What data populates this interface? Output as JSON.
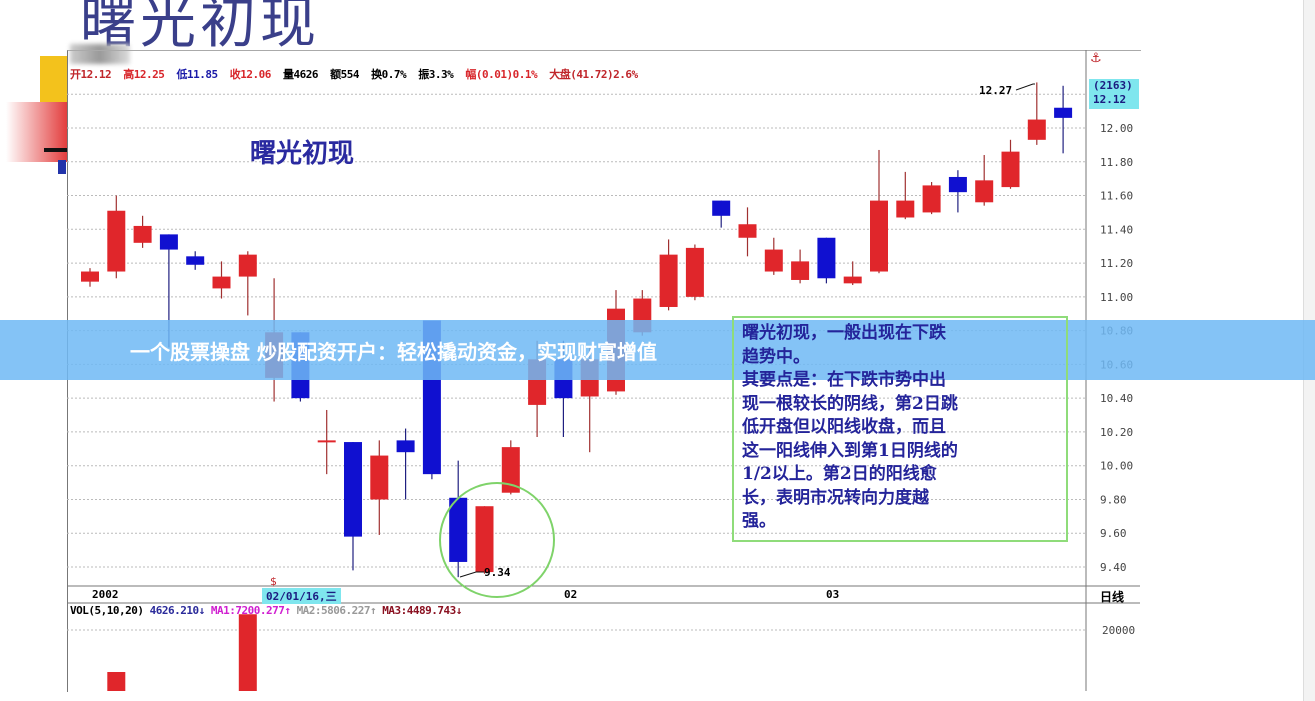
{
  "page": {
    "big_title": "曙光初现",
    "banner": "一个股票操盘 炒股配资开户：轻松撬动资金，实现财富增值"
  },
  "info_bar": {
    "open": "开12.12",
    "high": "高12.25",
    "low": "低11.85",
    "close": "收12.06",
    "volume": "量4626",
    "amount": "额554",
    "turnover": "换0.7%",
    "amplitude": "振3.3%",
    "change": "幅(0.01)0.1%",
    "index": "大盘(41.72)2.6%",
    "colors": {
      "open": "#c0262b",
      "high": "#d8262b",
      "low": "#1a1aa8",
      "close": "#d8262b",
      "neutral": "#111111",
      "change": "#d8262b",
      "index": "#c0262b"
    }
  },
  "chart_data": {
    "type": "candlestick",
    "title": "曙光初现",
    "ylim": [
      9.3,
      12.3
    ],
    "yticks": [
      "12.00",
      "11.80",
      "11.60",
      "11.40",
      "11.20",
      "11.00",
      "10.80",
      "10.60",
      "10.40",
      "10.20",
      "10.00",
      "9.80",
      "9.60",
      "9.40"
    ],
    "ytick_values": [
      12.0,
      11.8,
      11.6,
      11.4,
      11.2,
      11.0,
      10.8,
      10.6,
      10.4,
      10.2,
      10.0,
      9.8,
      9.6,
      9.4
    ],
    "grid": true,
    "up_color": "#e0262b",
    "down_color": "#1010d0",
    "candles": [
      {
        "o": 11.09,
        "c": 11.15,
        "h": 11.17,
        "l": 11.06
      },
      {
        "o": 11.15,
        "c": 11.51,
        "h": 11.6,
        "l": 11.11
      },
      {
        "o": 11.32,
        "c": 11.42,
        "h": 11.48,
        "l": 11.29
      },
      {
        "o": 11.37,
        "c": 11.28,
        "h": 11.37,
        "l": 10.7
      },
      {
        "o": 11.24,
        "c": 11.19,
        "h": 11.27,
        "l": 11.16
      },
      {
        "o": 11.05,
        "c": 11.12,
        "h": 11.21,
        "l": 10.99
      },
      {
        "o": 11.12,
        "c": 11.25,
        "h": 11.27,
        "l": 10.89
      },
      {
        "o": 10.52,
        "c": 10.79,
        "h": 11.11,
        "l": 10.38
      },
      {
        "o": 10.79,
        "c": 10.4,
        "h": 10.79,
        "l": 10.38
      },
      {
        "o": 10.15,
        "c": 10.15,
        "h": 10.33,
        "l": 9.95
      },
      {
        "o": 10.14,
        "c": 9.58,
        "h": 10.14,
        "l": 9.38
      },
      {
        "o": 9.8,
        "c": 10.06,
        "h": 10.15,
        "l": 9.59
      },
      {
        "o": 10.15,
        "c": 10.08,
        "h": 10.22,
        "l": 9.8
      },
      {
        "o": 10.86,
        "c": 9.95,
        "h": 10.86,
        "l": 9.92
      },
      {
        "o": 9.81,
        "c": 9.43,
        "h": 10.03,
        "l": 9.34
      },
      {
        "o": 9.37,
        "c": 9.76,
        "h": 9.76,
        "l": 9.36
      },
      {
        "o": 9.84,
        "c": 10.11,
        "h": 10.15,
        "l": 9.83
      },
      {
        "o": 10.36,
        "c": 10.63,
        "h": 10.74,
        "l": 10.17
      },
      {
        "o": 10.63,
        "c": 10.4,
        "h": 10.74,
        "l": 10.17
      },
      {
        "o": 10.41,
        "c": 10.63,
        "h": 10.71,
        "l": 10.08
      },
      {
        "o": 10.44,
        "c": 10.93,
        "h": 11.04,
        "l": 10.42
      },
      {
        "o": 10.79,
        "c": 10.99,
        "h": 11.04,
        "l": 10.77
      },
      {
        "o": 10.94,
        "c": 11.25,
        "h": 11.34,
        "l": 10.92
      },
      {
        "o": 11.0,
        "c": 11.29,
        "h": 11.31,
        "l": 10.98
      },
      {
        "o": 11.57,
        "c": 11.48,
        "h": 11.57,
        "l": 11.41
      },
      {
        "o": 11.35,
        "c": 11.43,
        "h": 11.53,
        "l": 11.24
      },
      {
        "o": 11.15,
        "c": 11.28,
        "h": 11.35,
        "l": 11.13
      },
      {
        "o": 11.1,
        "c": 11.21,
        "h": 11.28,
        "l": 11.08
      },
      {
        "o": 11.35,
        "c": 11.11,
        "h": 11.35,
        "l": 11.08
      },
      {
        "o": 11.08,
        "c": 11.12,
        "h": 11.21,
        "l": 11.07
      },
      {
        "o": 11.15,
        "c": 11.57,
        "h": 11.87,
        "l": 11.14
      },
      {
        "o": 11.47,
        "c": 11.57,
        "h": 11.74,
        "l": 11.46
      },
      {
        "o": 11.5,
        "c": 11.66,
        "h": 11.68,
        "l": 11.49
      },
      {
        "o": 11.71,
        "c": 11.62,
        "h": 11.75,
        "l": 11.5
      },
      {
        "o": 11.56,
        "c": 11.69,
        "h": 11.84,
        "l": 11.54
      },
      {
        "o": 11.65,
        "c": 11.86,
        "h": 11.93,
        "l": 11.64
      },
      {
        "o": 11.93,
        "c": 12.05,
        "h": 12.27,
        "l": 11.9
      },
      {
        "o": 12.12,
        "c": 12.06,
        "h": 12.25,
        "l": 11.85
      }
    ],
    "annotations": {
      "high_label": "12.27",
      "low_label": "9.34",
      "axis_tag_count": "(2163)",
      "axis_tag_price": "12.12",
      "anchor_icon": "⚓"
    },
    "x_labels": {
      "year": "2002",
      "cursor_date": "02/01/16,三",
      "month2": "02",
      "month3": "03",
      "period": "日线",
      "cursor_marker": "$"
    },
    "volume": {
      "legend": "VOL(5,10,20)",
      "value": "4626.210↓",
      "ma1": "MA1:7200.277↑",
      "ma2": "MA2:5806.227↑",
      "ma3": "MA3:4489.743↓",
      "ma_colors": {
        "value": "#2a2a9a",
        "ma1": "#d020d0",
        "ma2": "#999999",
        "ma3": "#8a1020"
      },
      "ytick": "20000",
      "visible_bars": [
        {
          "candle": 1,
          "value": 12000
        },
        {
          "candle": 6,
          "value": 23000
        }
      ]
    }
  },
  "note": {
    "heading": "曙光初现",
    "lines": [
      "曙光初现，一般出现在下跌",
      "趋势中。",
      "其要点是：在下跌市势中出",
      "现一根较长的阴线，第2日跳",
      "低开盘但以阳线收盘，而且",
      "这一阳线伸入到第1日阴线的",
      "1/2以上。第2日的阳线愈",
      "长，表明市况转向力度越",
      "强。"
    ]
  }
}
